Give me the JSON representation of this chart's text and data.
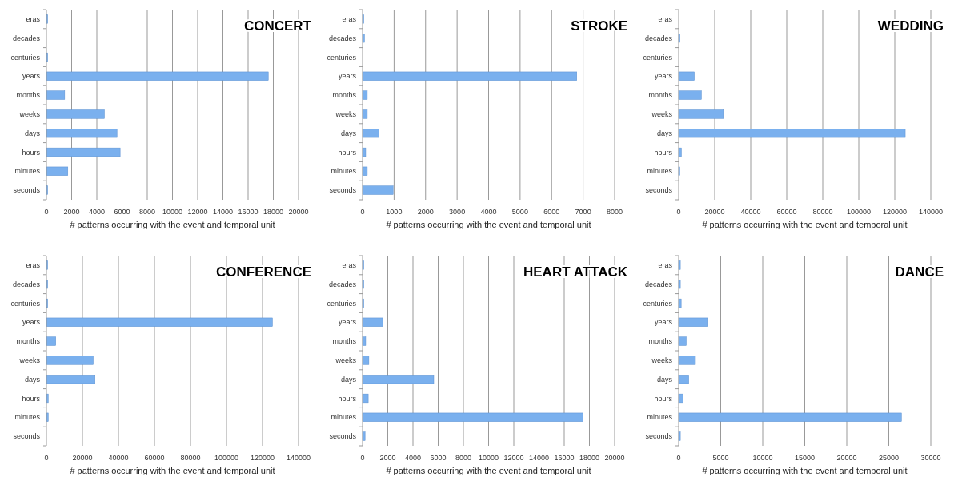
{
  "chart_data": [
    {
      "type": "bar",
      "orientation": "horizontal",
      "title": "CONCERT",
      "xlabel": "# patterns occurring with the event and temporal unit",
      "categories": [
        "eras",
        "decades",
        "centuries",
        "years",
        "months",
        "weeks",
        "days",
        "hours",
        "minutes",
        "seconds"
      ],
      "values": [
        100,
        0,
        100,
        17600,
        1450,
        4600,
        5600,
        5850,
        1700,
        100
      ],
      "color": "#7ab0ee",
      "xlim": [
        0,
        20000
      ],
      "xticks": [
        0,
        2000,
        4000,
        6000,
        8000,
        10000,
        12000,
        14000,
        16000,
        18000,
        20000
      ],
      "grid": "x"
    },
    {
      "type": "bar",
      "orientation": "horizontal",
      "title": "STROKE",
      "xlabel": "# patterns occurring with the event and temporal unit",
      "categories": [
        "eras",
        "decades",
        "centuries",
        "years",
        "months",
        "weeks",
        "days",
        "hours",
        "minutes",
        "seconds"
      ],
      "values": [
        40,
        60,
        0,
        6800,
        150,
        150,
        520,
        100,
        150,
        970
      ],
      "color": "#7ab0ee",
      "xlim": [
        0,
        8000
      ],
      "xticks": [
        0,
        1000,
        2000,
        3000,
        4000,
        5000,
        6000,
        7000,
        8000
      ],
      "grid": "x"
    },
    {
      "type": "bar",
      "orientation": "horizontal",
      "title": "WEDDING",
      "xlabel": "# patterns occurring with the event and temporal unit",
      "categories": [
        "eras",
        "decades",
        "centuries",
        "years",
        "months",
        "weeks",
        "days",
        "hours",
        "minutes",
        "seconds"
      ],
      "values": [
        0,
        700,
        0,
        8700,
        12600,
        24800,
        125800,
        1500,
        600,
        0
      ],
      "color": "#7ab0ee",
      "xlim": [
        0,
        140000
      ],
      "xticks": [
        0,
        20000,
        40000,
        60000,
        80000,
        100000,
        120000,
        140000
      ],
      "grid": "x"
    },
    {
      "type": "bar",
      "orientation": "horizontal",
      "title": "CONFERENCE",
      "xlabel": "# patterns occurring with the event and temporal unit",
      "categories": [
        "eras",
        "decades",
        "centuries",
        "years",
        "months",
        "weeks",
        "days",
        "hours",
        "minutes",
        "seconds"
      ],
      "values": [
        700,
        700,
        700,
        125500,
        5200,
        26000,
        27000,
        1000,
        1000,
        0
      ],
      "color": "#7ab0ee",
      "xlim": [
        0,
        140000
      ],
      "xticks": [
        0,
        20000,
        40000,
        60000,
        80000,
        100000,
        120000,
        140000
      ],
      "grid": "x"
    },
    {
      "type": "bar",
      "orientation": "horizontal",
      "title": "HEART ATTACK",
      "xlabel": "# patterns occurring with the event and temporal unit",
      "categories": [
        "eras",
        "decades",
        "centuries",
        "years",
        "months",
        "weeks",
        "days",
        "hours",
        "minutes",
        "seconds"
      ],
      "values": [
        100,
        100,
        100,
        1600,
        250,
        500,
        5650,
        450,
        17500,
        200
      ],
      "color": "#7ab0ee",
      "xlim": [
        0,
        20000
      ],
      "xticks": [
        0,
        2000,
        4000,
        6000,
        8000,
        10000,
        12000,
        14000,
        16000,
        18000,
        20000
      ],
      "grid": "x"
    },
    {
      "type": "bar",
      "orientation": "horizontal",
      "title": "DANCE",
      "xlabel": "# patterns occurring with the event and temporal unit",
      "categories": [
        "eras",
        "decades",
        "centuries",
        "years",
        "months",
        "weeks",
        "days",
        "hours",
        "minutes",
        "seconds"
      ],
      "values": [
        200,
        200,
        300,
        3500,
        900,
        2000,
        1200,
        500,
        26500,
        200
      ],
      "color": "#7ab0ee",
      "xlim": [
        0,
        30000
      ],
      "xticks": [
        0,
        5000,
        10000,
        15000,
        20000,
        25000,
        30000
      ],
      "grid": "x"
    }
  ]
}
